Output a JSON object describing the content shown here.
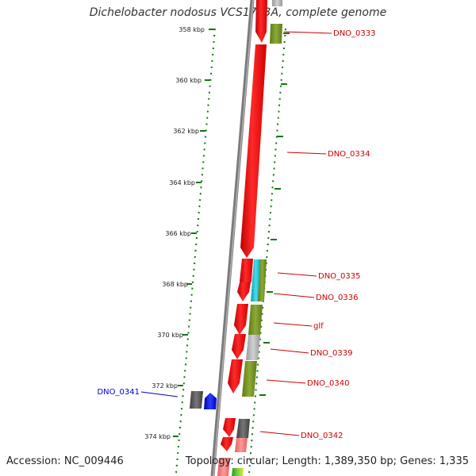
{
  "title": "Dichelobacter nodosus VCS1703A, complete genome",
  "footer": {
    "accession": "Accession: NC_009446",
    "topology": "Topology: circular; Length: 1,389,350 bp; Genes: 1,335"
  },
  "scale_labels": [
    "358 kbp",
    "360 kbp",
    "362 kbp",
    "364 kbp",
    "366 kbp",
    "368 kbp",
    "370 kbp",
    "372 kbp",
    "374 kbp"
  ],
  "gene_labels": {
    "forward": [
      "DNO_0333",
      "DNO_0334",
      "DNO_0335",
      "DNO_0336",
      "glf",
      "DNO_0339",
      "DNO_0340",
      "DNO_0342"
    ],
    "reverse": [
      "DNO_0341"
    ]
  },
  "colors": {
    "forward_label": "#cc0000",
    "reverse_label": "#0000cc",
    "cds_forward": "#ff1a1a",
    "cds_reverse": "#1a1aff",
    "cog_olive": "#7f9a2a",
    "cog_gray": "#a8a8a8",
    "cog_dark": "#555555",
    "cog_cyan": "#22c8d8",
    "backbone": "#8a8a8a",
    "ticks": "#117711"
  }
}
